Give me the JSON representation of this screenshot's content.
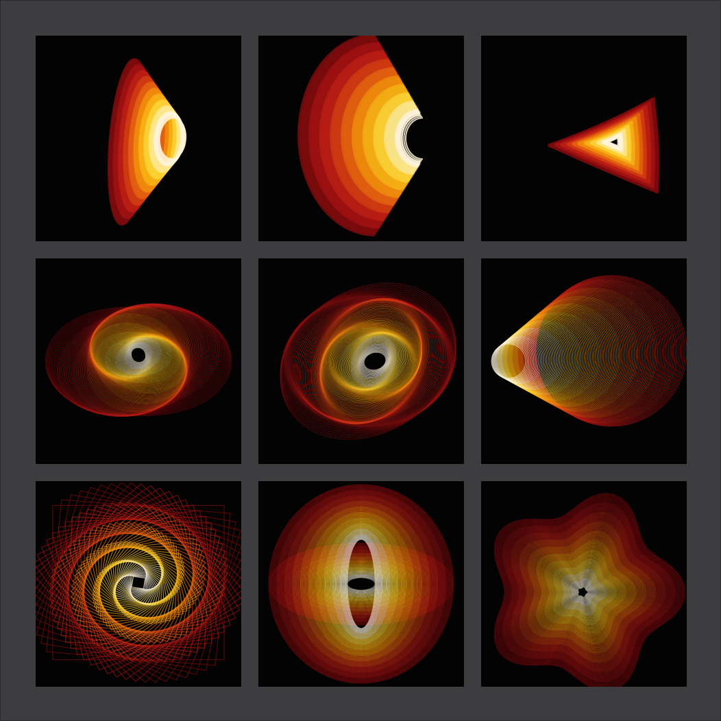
{
  "palette": {
    "background": "#3d3d3f",
    "tile_background": "#030303",
    "ramp": [
      "#7a0a0c",
      "#9e1112",
      "#b81d14",
      "#cf3a12",
      "#e25f0f",
      "#ef8a0c",
      "#f6ae14",
      "#fbd034",
      "#fde68a",
      "#fff5dc"
    ]
  },
  "tiles": [
    {
      "name": "cone-rings-artwork",
      "shape": "cone-rings"
    },
    {
      "name": "crescent-arcs-artwork",
      "shape": "crescents"
    },
    {
      "name": "triangle-nest-artwork",
      "shape": "triangles"
    },
    {
      "name": "heart-swirl-artwork",
      "shape": "heart-swirl"
    },
    {
      "name": "tilted-loops-artwork",
      "shape": "tilted-loops"
    },
    {
      "name": "sideways-funnel-artwork",
      "shape": "funnel"
    },
    {
      "name": "square-spiral-artwork",
      "shape": "square-spiral"
    },
    {
      "name": "lens-oval-artwork",
      "shape": "lens-oval"
    },
    {
      "name": "radial-burst-artwork",
      "shape": "burst"
    }
  ]
}
